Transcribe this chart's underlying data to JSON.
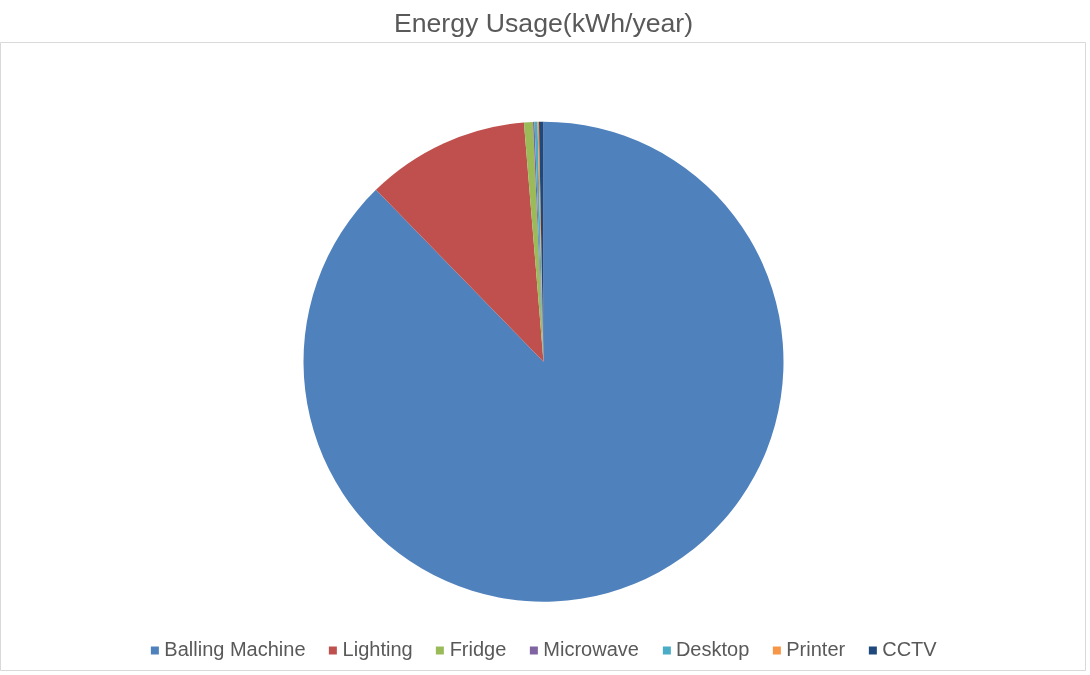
{
  "chart_data": {
    "type": "pie",
    "title": "Energy Usage(kWh/year)",
    "categories": [
      "Balling Machine",
      "Lighting",
      "Fridge",
      "Microwave",
      "Desktop",
      "Printer",
      "CCTV"
    ],
    "values": [
      87.7,
      11.0,
      0.6,
      0.1,
      0.2,
      0.1,
      0.3
    ],
    "colors": [
      "#4f81bd",
      "#c0504d",
      "#9bbb59",
      "#8064a2",
      "#4bacc6",
      "#f79646",
      "#1f497d"
    ],
    "legend": "bottom"
  }
}
